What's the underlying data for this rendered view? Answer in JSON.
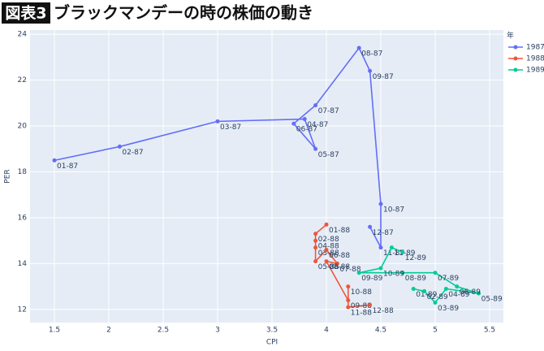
{
  "chart_data": {
    "type": "scatter",
    "title_box": "図表3",
    "title": "ブラックマンデーの時の株価の動き",
    "x_label": "CPI",
    "y_label": "PER",
    "legend_title": "年",
    "legend_position": "top-right",
    "xlim": [
      1.276,
      5.627
    ],
    "ylim": [
      11.43,
      24.18
    ],
    "xticks": [
      1.5,
      2,
      2.5,
      3,
      3.5,
      4,
      4.5,
      5,
      5.5
    ],
    "yticks": [
      12,
      14,
      16,
      18,
      20,
      22,
      24
    ],
    "grid": true,
    "series": [
      {
        "name": "1987",
        "color": "#636efa",
        "x": [
          1.5,
          2.1,
          3.0,
          3.8,
          3.9,
          3.7,
          3.9,
          4.3,
          4.4,
          4.5,
          4.5,
          4.4
        ],
        "values": [
          18.5,
          19.1,
          20.2,
          20.3,
          19.0,
          20.1,
          20.9,
          23.4,
          22.4,
          16.6,
          14.7,
          15.6
        ],
        "labels": [
          "01-87",
          "02-87",
          "03-87",
          "04-87",
          "05-87",
          "06-87",
          "07-87",
          "08-87",
          "09-87",
          "10-87",
          "11-87",
          "12-87"
        ]
      },
      {
        "name": "1988",
        "color": "#EF553B",
        "x": [
          4.0,
          3.9,
          3.9,
          3.9,
          3.9,
          4.0,
          4.1,
          4.0,
          4.2,
          4.2,
          4.2,
          4.4
        ],
        "values": [
          15.7,
          15.3,
          14.7,
          15.0,
          14.1,
          14.6,
          14.0,
          14.1,
          12.4,
          13.0,
          12.1,
          12.2
        ],
        "labels": [
          "01-88",
          "02-88",
          "03-88",
          "04-88",
          "05-88",
          "06-88",
          "07-88",
          "08-88",
          "09-88",
          "10-88",
          "11-88",
          "12-88"
        ]
      },
      {
        "name": "1989",
        "color": "#00cc96",
        "x": [
          4.8,
          4.9,
          5.0,
          5.1,
          5.4,
          5.2,
          5.0,
          4.7,
          4.3,
          4.5,
          4.6,
          4.7
        ],
        "values": [
          12.9,
          12.8,
          12.3,
          12.9,
          12.7,
          13.0,
          13.6,
          13.6,
          13.6,
          13.8,
          14.7,
          14.5
        ],
        "labels": [
          "01-89",
          "02-89",
          "03-89",
          "04-89",
          "05-89",
          "06-89",
          "07-89",
          "08-89",
          "09-89",
          "10-89",
          "11-89",
          "12-89"
        ]
      }
    ]
  }
}
